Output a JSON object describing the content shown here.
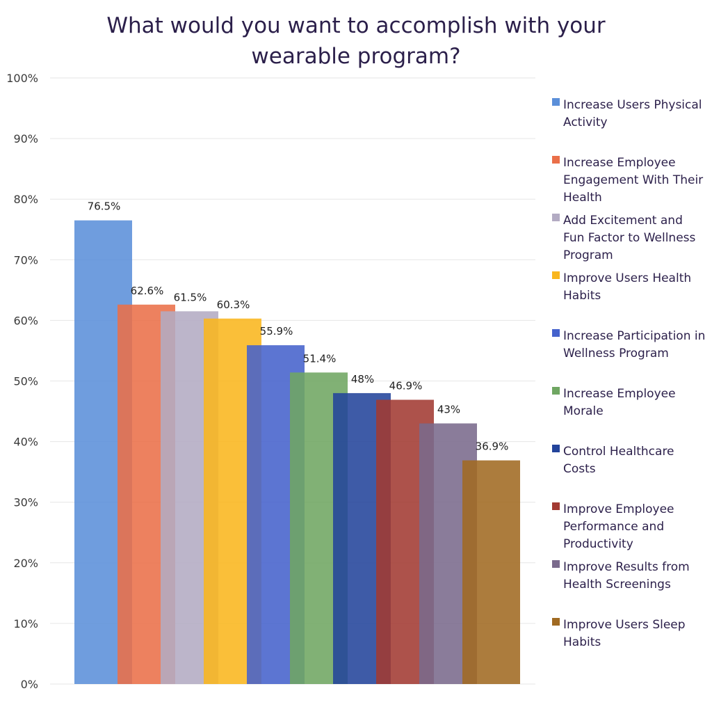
{
  "chart_data": {
    "type": "bar",
    "title": "What would you want to accomplish with your wearable program?",
    "xlabel": "",
    "ylabel": "",
    "ylim": [
      0,
      100
    ],
    "yticks": [
      "0%",
      "10%",
      "20%",
      "30%",
      "40%",
      "50%",
      "60%",
      "70%",
      "80%",
      "90%",
      "100%"
    ],
    "grid": true,
    "legend_position": "right",
    "series": [
      {
        "name": "Increase Users Physical Activity",
        "value": 76.5,
        "label": "76.5%",
        "color": "#5b8fd9"
      },
      {
        "name": "Increase Employee Engagement With Their Health",
        "value": 62.6,
        "label": "62.6%",
        "color": "#ea6f49"
      },
      {
        "name": "Add Excitement and Fun Factor to Wellness Program",
        "value": 61.5,
        "label": "61.5%",
        "color": "#b3abc3"
      },
      {
        "name": "Improve Users Health Habits",
        "value": 60.3,
        "label": "60.3%",
        "color": "#f9b61e"
      },
      {
        "name": "Increase Participation in Wellness Program",
        "value": 55.9,
        "label": "55.9%",
        "color": "#4562cc"
      },
      {
        "name": "Increase Employee Morale",
        "value": 51.4,
        "label": "51.4%",
        "color": "#6fa662"
      },
      {
        "name": "Control Healthcare Costs",
        "value": 48,
        "label": "48%",
        "color": "#23449b"
      },
      {
        "name": "Improve Employee Performance and Productivity",
        "value": 46.9,
        "label": "46.9%",
        "color": "#a23a32"
      },
      {
        "name": "Improve Results from Health Screenings",
        "value": 43,
        "label": "43%",
        "color": "#7a6a8c"
      },
      {
        "name": "Improve Users Sleep Habits",
        "value": 36.9,
        "label": "36.9%",
        "color": "#a06a22"
      }
    ]
  }
}
